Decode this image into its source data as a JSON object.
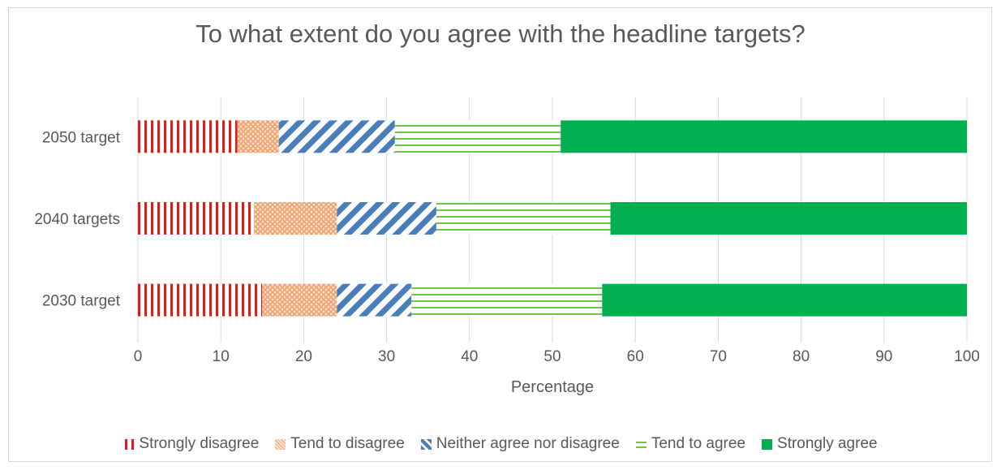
{
  "chart_data": {
    "type": "bar",
    "orientation": "horizontal",
    "stacked": true,
    "title": "To what extent do you agree with the headline targets?",
    "xlabel": "Percentage",
    "ylabel": "",
    "xlim": [
      0,
      100
    ],
    "x_ticks": [
      0,
      10,
      20,
      30,
      40,
      50,
      60,
      70,
      80,
      90,
      100
    ],
    "grid": true,
    "legend_position": "bottom",
    "categories": [
      "2050 target",
      "2040 targets",
      "2030 target"
    ],
    "series": [
      {
        "name": "Strongly disagree",
        "color": "#e31a1c",
        "pattern": "vertical-lines",
        "values": [
          12,
          14,
          15
        ]
      },
      {
        "name": "Tend to disagree",
        "color": "#f4b183",
        "pattern": "cross-hatch",
        "values": [
          5,
          10,
          9
        ]
      },
      {
        "name": "Neither agree nor disagree",
        "color": "#4a7ebb",
        "pattern": "diagonal-stripes",
        "values": [
          14,
          12,
          9
        ]
      },
      {
        "name": "Tend to agree",
        "color": "#70c448",
        "pattern": "horizontal-lines",
        "values": [
          20,
          21,
          23
        ]
      },
      {
        "name": "Strongly agree",
        "color": "#00b050",
        "pattern": "solid",
        "values": [
          49,
          43,
          44
        ]
      }
    ]
  }
}
